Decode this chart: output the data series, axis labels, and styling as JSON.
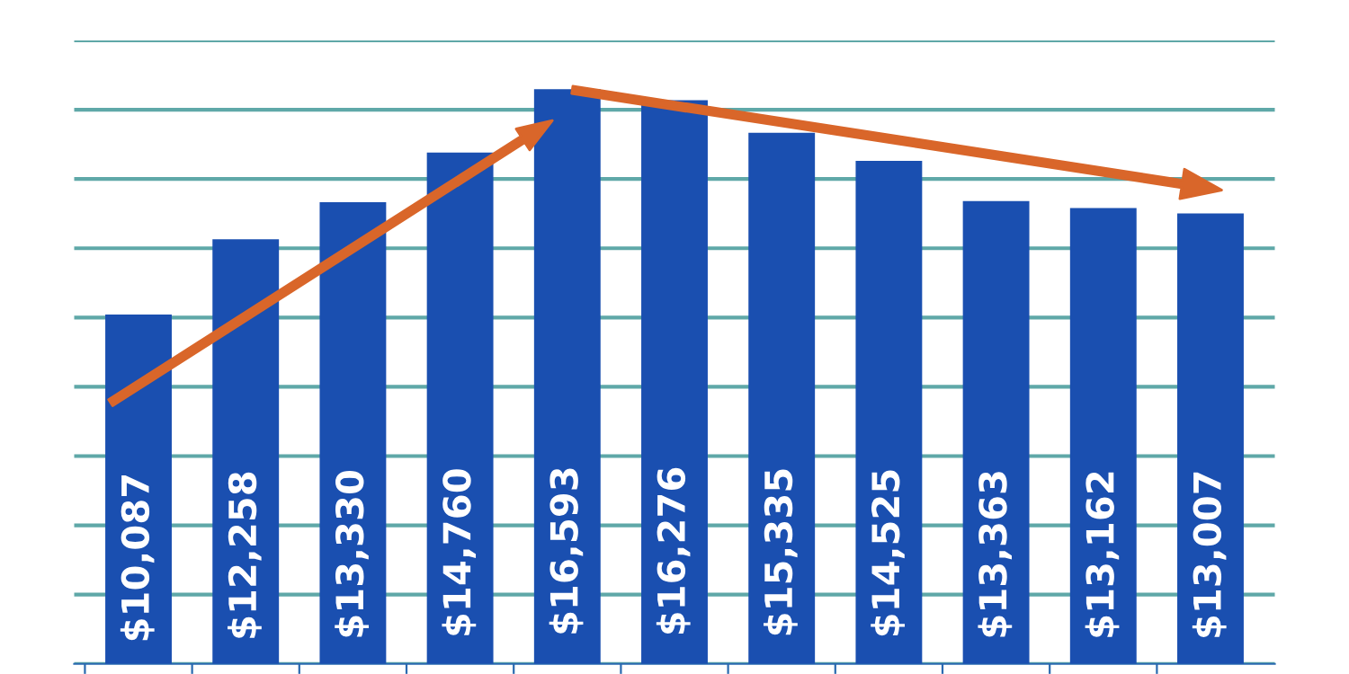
{
  "chart_data": {
    "type": "bar",
    "categories": [
      null,
      null,
      null,
      null,
      null,
      null,
      null,
      null,
      null,
      null,
      null
    ],
    "values": [
      10087,
      12258,
      13330,
      14760,
      16593,
      16276,
      15335,
      14525,
      13363,
      13162,
      13007
    ],
    "value_labels": [
      "$10,087",
      "$12,258",
      "$13,330",
      "$14,760",
      "$16,593",
      "$16,276",
      "$15,335",
      "$14,525",
      "$13,363",
      "$13,162",
      "$13,007"
    ],
    "color": "#1a4fb0",
    "ylim": [
      0,
      18000
    ],
    "yticks": [
      0,
      2000,
      4000,
      6000,
      8000,
      10000,
      12000,
      14000,
      16000,
      18000
    ],
    "grid": "y",
    "tick_labels": false
  }
}
